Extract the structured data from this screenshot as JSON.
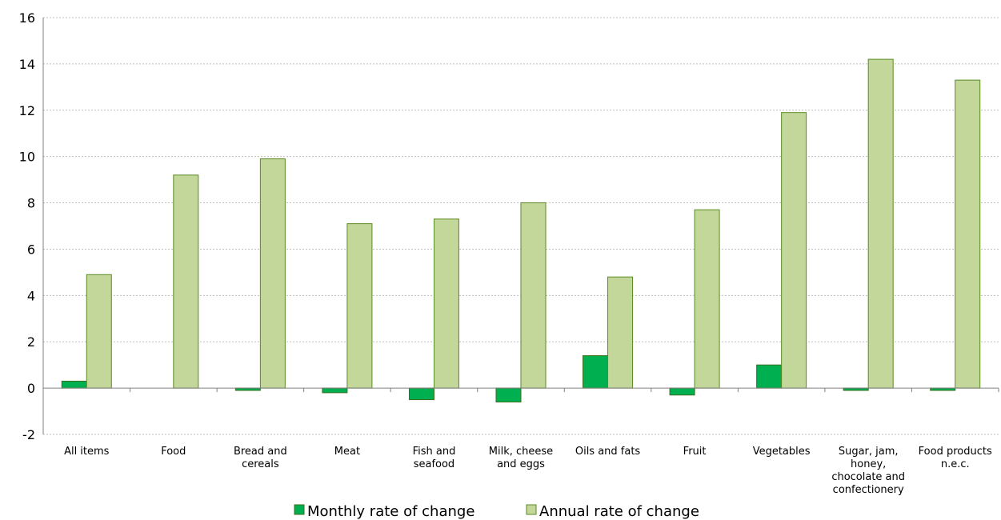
{
  "chart_data": {
    "type": "bar",
    "categories": [
      "All items",
      "Food",
      "Bread and cereals",
      "Meat",
      "Fish and seafood",
      "Milk, cheese and eggs",
      "Oils and fats",
      "Fruit",
      "Vegetables",
      "Sugar, jam, honey, chocolate and confectionery",
      "Food products n.e.c."
    ],
    "category_lines": [
      [
        "All items"
      ],
      [
        "Food"
      ],
      [
        "Bread and",
        "cereals"
      ],
      [
        "Meat"
      ],
      [
        "Fish and",
        "seafood"
      ],
      [
        "Milk, cheese",
        "and eggs"
      ],
      [
        "Oils and fats"
      ],
      [
        "Fruit"
      ],
      [
        "Vegetables"
      ],
      [
        "Sugar, jam,",
        "honey,",
        "chocolate and",
        "confectionery"
      ],
      [
        "Food products",
        "n.e.c."
      ]
    ],
    "series": [
      {
        "name": "Monthly rate of change",
        "color": "#00b050",
        "border": "#3c6e1e",
        "values": [
          0.3,
          0.0,
          -0.1,
          -0.2,
          -0.5,
          -0.6,
          1.4,
          -0.3,
          1.0,
          -0.1,
          -0.1
        ]
      },
      {
        "name": "Annual rate of change",
        "color": "#c4d79b",
        "border": "#5a8a23",
        "values": [
          4.9,
          9.2,
          9.9,
          7.1,
          7.3,
          8.0,
          4.8,
          7.7,
          11.9,
          14.2,
          13.3
        ]
      }
    ],
    "ylim": [
      -2,
      16
    ],
    "yticks": [
      -2,
      0,
      2,
      4,
      6,
      8,
      10,
      12,
      14,
      16
    ],
    "title": "",
    "xlabel": "",
    "ylabel": "",
    "grid": true,
    "legend_position": "bottom"
  }
}
